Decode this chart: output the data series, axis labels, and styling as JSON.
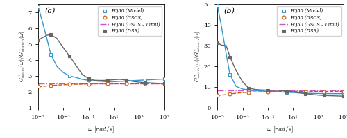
{
  "omega": [
    1e-05,
    2e-05,
    5e-05,
    0.0001,
    0.0003,
    0.001,
    0.003,
    0.01,
    0.03,
    0.1,
    0.3,
    1.0,
    3.0,
    10.0,
    30.0,
    100.0,
    300.0,
    1000.0,
    3000.0,
    10000.0,
    30000.0,
    100000.0
  ],
  "a_model": [
    7.35,
    6.5,
    5.3,
    4.35,
    3.6,
    3.2,
    3.0,
    2.9,
    2.78,
    2.72,
    2.68,
    2.65,
    2.62,
    2.63,
    2.65,
    2.67,
    2.7,
    2.72,
    2.74,
    2.76,
    2.78,
    2.8
  ],
  "a_gscs": [
    2.33,
    2.34,
    2.36,
    2.38,
    2.41,
    2.44,
    2.46,
    2.47,
    2.48,
    2.49,
    2.5,
    2.5,
    2.5,
    2.5,
    2.5,
    2.5,
    2.5,
    2.5,
    2.5,
    2.5,
    2.5,
    2.5
  ],
  "a_limit": [
    2.5,
    2.5,
    2.5,
    2.5,
    2.5,
    2.5,
    2.5,
    2.5,
    2.5,
    2.5,
    2.5,
    2.5,
    2.5,
    2.5,
    2.5,
    2.5,
    2.5,
    2.5,
    2.5,
    2.5,
    2.5,
    2.5
  ],
  "a_dsr": [
    5.25,
    5.38,
    5.55,
    5.58,
    5.35,
    4.75,
    4.25,
    3.65,
    3.1,
    2.82,
    2.72,
    2.71,
    2.72,
    2.76,
    2.78,
    2.73,
    2.65,
    2.6,
    2.57,
    2.55,
    2.53,
    2.52
  ],
  "b_model": [
    49.5,
    40.0,
    26.0,
    16.0,
    10.3,
    9.0,
    8.6,
    8.3,
    8.1,
    7.9,
    7.7,
    7.6,
    7.4,
    7.3,
    7.1,
    7.0,
    6.9,
    6.85,
    6.82,
    6.8,
    6.78,
    6.75
  ],
  "b_gscs": [
    6.0,
    6.1,
    6.3,
    6.6,
    7.0,
    7.3,
    7.5,
    7.6,
    7.65,
    7.7,
    7.75,
    7.78,
    7.8,
    7.81,
    7.82,
    7.82,
    7.82,
    7.82,
    7.82,
    7.82,
    7.82,
    7.82
  ],
  "b_limit": [
    8.2,
    8.2,
    8.2,
    8.2,
    8.2,
    8.2,
    8.2,
    8.2,
    8.2,
    8.2,
    8.2,
    8.2,
    8.2,
    8.2,
    8.2,
    8.2,
    8.2,
    8.2,
    8.2,
    8.2,
    8.2,
    8.2
  ],
  "b_dsr": [
    31.5,
    30.2,
    30.0,
    24.5,
    18.0,
    12.5,
    9.5,
    8.8,
    8.6,
    8.5,
    8.4,
    8.3,
    8.1,
    7.7,
    7.2,
    6.8,
    6.4,
    6.1,
    5.9,
    5.8,
    5.7,
    5.6
  ],
  "color_model": "#3399cc",
  "color_gscs": "#cc5500",
  "color_limit": "#cc55cc",
  "color_dsr": "#666666",
  "label_a_model": "BQ30 (Model)",
  "label_a_gscs": "BQ30 (GSCS)",
  "label_a_limit": "BQ30 (GSCS – Limit)",
  "label_a_dsr": "BQ30 (DSR)",
  "label_b_model": "BQ50 (Model)",
  "label_b_gscs": "BQ50 (GSCS)",
  "label_b_limit": "BQ50 (GSCS – Limit)",
  "label_b_dsr": "BQ50 (DSR)",
  "xlabel": "$\\omega$ $[rad/s]$",
  "ylabel_a": "$G^*_{mastic}(\\omega)/G^*_{bitumen}(\\omega)$",
  "a_ylim": [
    1,
    7.5
  ],
  "a_yticks": [
    1,
    2,
    3,
    4,
    5,
    6,
    7
  ],
  "b_ylim": [
    0,
    50
  ],
  "b_yticks": [
    0,
    10,
    20,
    30,
    40,
    50
  ],
  "xlim": [
    1e-05,
    100000.0
  ],
  "marker_model": "s",
  "marker_gscs": "o",
  "marker_dsr": "s",
  "marker_size": 3.5,
  "linewidth": 1.0
}
